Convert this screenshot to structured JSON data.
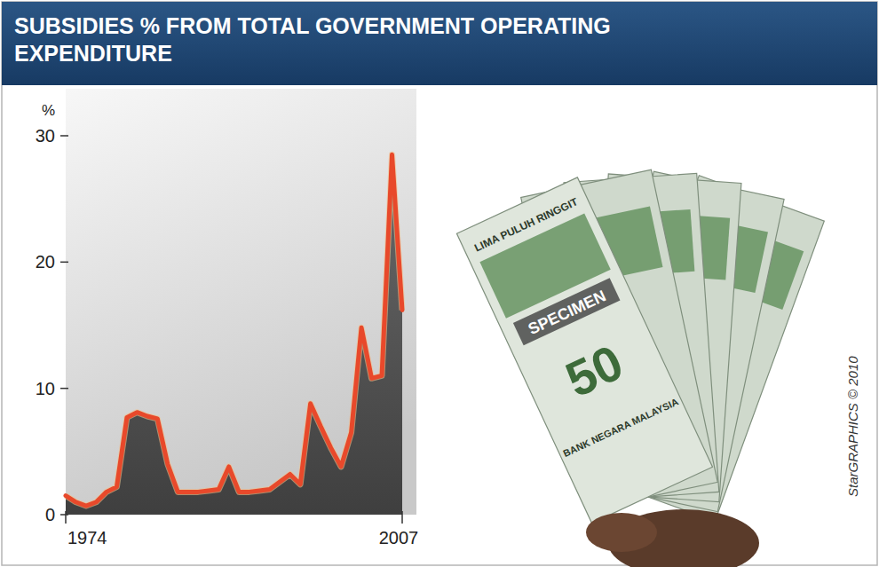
{
  "chart_data": {
    "type": "area",
    "title": "SUBSIDIES % FROM TOTAL GOVERNMENT OPERATING EXPENDITURE",
    "y_label": "%",
    "x": [
      1974,
      1975,
      1976,
      1977,
      1978,
      1979,
      1980,
      1981,
      1982,
      1983,
      1984,
      1985,
      1986,
      1987,
      1988,
      1989,
      1990,
      1991,
      1992,
      1993,
      1994,
      1995,
      1996,
      1997,
      1998,
      1999,
      2000,
      2001,
      2002,
      2003,
      2004,
      2005,
      2006,
      2007
    ],
    "values": [
      1.5,
      1.0,
      0.7,
      1.0,
      1.8,
      2.2,
      7.7,
      8.1,
      7.8,
      7.6,
      4.0,
      1.8,
      1.8,
      1.8,
      1.9,
      2.0,
      3.8,
      1.8,
      1.8,
      1.9,
      2.0,
      2.6,
      3.2,
      2.4,
      8.8,
      7.0,
      5.3,
      3.8,
      6.5,
      14.8,
      10.8,
      11.0,
      28.5,
      16.2
    ],
    "color": "#e8492b",
    "xlim": [
      1974,
      2007
    ],
    "xticks": [
      1974,
      2007
    ],
    "ylim": [
      0,
      30
    ],
    "yticks": [
      0,
      10,
      20,
      30
    ],
    "grid": false,
    "credit": "StarGRAPHICS © 2010",
    "image_texts": [
      "LIMA PULUH RINGGIT",
      "SPECIMEN",
      "50",
      "BANK NEGARA MALAYSIA"
    ]
  }
}
